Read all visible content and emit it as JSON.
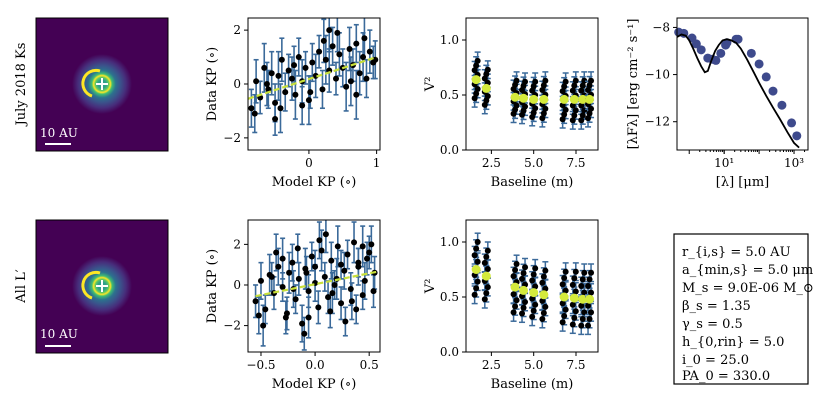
{
  "figure": {
    "rows": [
      {
        "row_label": "July 2018 Ks",
        "image_scale_label": "10 AU"
      },
      {
        "row_label": "All L′",
        "image_scale_label": "10 AU"
      }
    ],
    "parameters_box": [
      "r_{i,s} = 5.0 AU",
      "a_{min,s} = 5.0 μm",
      "M_s = 9.0E-06 M_⊙",
      "β_s = 1.35",
      "γ_s = 0.5",
      "h_{0,rin} = 5.0",
      "i_0 = 25.0",
      "PA_0 = 330.0"
    ]
  },
  "colors": {
    "image_bg": "#440154",
    "ring": "#fde725",
    "errorbar": "#3b6a9a",
    "point": "#000000",
    "fit_line": "#c8e03a",
    "v2_binned": "#d4ea3c",
    "sed_points": "#3e4a8c",
    "sed_model": "#000000"
  },
  "chart_data": [
    {
      "panel": "kp-row1",
      "type": "scatter",
      "xlabel": "Model KP (∘)",
      "ylabel": "Data KP (∘)",
      "xlim": [
        -0.9,
        1.05
      ],
      "ylim": [
        -2.45,
        2.45
      ],
      "xticks": [
        0,
        1
      ],
      "xtick_labels": [
        "0",
        "1"
      ],
      "yticks": [
        -2,
        0,
        2
      ],
      "ytick_labels": [
        "−2",
        "0",
        "2"
      ],
      "fit_line": {
        "x": [
          -0.9,
          1.0
        ],
        "y": [
          -0.55,
          1.0
        ]
      },
      "series": [
        {
          "name": "data",
          "x": [
            -0.85,
            -0.78,
            -0.72,
            -0.66,
            -0.6,
            -0.55,
            -0.5,
            -0.45,
            -0.4,
            -0.35,
            -0.3,
            -0.25,
            -0.2,
            -0.15,
            -0.1,
            -0.05,
            0.0,
            0.05,
            0.1,
            0.15,
            0.2,
            0.25,
            0.3,
            0.35,
            0.4,
            0.45,
            0.5,
            0.55,
            0.6,
            0.65,
            0.7,
            0.75,
            0.8,
            0.85,
            0.9,
            0.95,
            -0.8,
            -0.62,
            -0.42,
            -0.22,
            0.02,
            0.22,
            0.42,
            0.62,
            0.82,
            -0.5,
            -0.1,
            0.3,
            0.7,
            0.98
          ],
          "y": [
            -0.9,
            0.1,
            -0.5,
            0.6,
            -0.2,
            0.4,
            -0.7,
            0.3,
            0.9,
            -0.3,
            0.5,
            0.2,
            -0.4,
            1.0,
            0.1,
            0.6,
            -0.6,
            0.8,
            0.3,
            1.2,
            -0.2,
            0.9,
            0.5,
            1.4,
            0.2,
            1.1,
            0.6,
            -0.1,
            1.3,
            0.7,
            1.5,
            0.4,
            1.0,
            0.2,
            1.2,
            0.8,
            -1.1,
            0.0,
            -0.9,
            0.7,
            -0.3,
            1.6,
            1.9,
            0.1,
            1.7,
            -1.3,
            -0.8,
            2.0,
            -0.4,
            0.9
          ],
          "yerr": [
            0.7,
            0.8,
            0.6,
            0.9,
            0.7,
            0.8,
            0.7,
            0.9,
            0.8,
            0.7,
            0.6,
            0.8,
            0.9,
            0.7,
            0.8,
            0.6,
            0.9,
            0.7,
            0.8,
            0.6,
            0.7,
            0.9,
            0.8,
            0.7,
            0.6,
            0.8,
            0.7,
            0.9,
            0.8,
            0.6,
            0.7,
            0.8,
            0.9,
            0.7,
            0.8,
            0.6,
            0.7,
            0.8,
            0.9,
            0.7,
            0.6,
            0.8,
            0.7,
            0.9,
            0.8,
            0.6,
            0.7,
            0.8,
            0.9,
            0.7
          ]
        }
      ]
    },
    {
      "panel": "v2-row1",
      "type": "scatter",
      "xlabel": "Baseline (m)",
      "ylabel": "V²",
      "xlim": [
        1.0,
        8.8
      ],
      "ylim": [
        0.0,
        1.2
      ],
      "xticks": [
        2.5,
        5.0,
        7.5
      ],
      "xtick_labels": [
        "2.5",
        "5.0",
        "7.5"
      ],
      "yticks": [
        0.0,
        0.5,
        1.0
      ],
      "ytick_labels": [
        "0.0",
        "0.5",
        "1.0"
      ],
      "groups": [
        {
          "baseline": 1.6,
          "center": 0.64,
          "spread": 0.17,
          "binned": 0.64
        },
        {
          "baseline": 2.2,
          "center": 0.57,
          "spread": 0.16,
          "binned": 0.56
        },
        {
          "baseline": 3.9,
          "center": 0.48,
          "spread": 0.15,
          "binned": 0.48
        },
        {
          "baseline": 4.4,
          "center": 0.47,
          "spread": 0.15,
          "binned": 0.47
        },
        {
          "baseline": 5.0,
          "center": 0.46,
          "spread": 0.16,
          "binned": 0.46
        },
        {
          "baseline": 5.6,
          "center": 0.46,
          "spread": 0.17,
          "binned": 0.46
        },
        {
          "baseline": 6.8,
          "center": 0.45,
          "spread": 0.17,
          "binned": 0.46
        },
        {
          "baseline": 7.4,
          "center": 0.45,
          "spread": 0.18,
          "binned": 0.46
        },
        {
          "baseline": 7.9,
          "center": 0.45,
          "spread": 0.18,
          "binned": 0.46
        },
        {
          "baseline": 8.3,
          "center": 0.46,
          "spread": 0.17,
          "binned": 0.46
        }
      ]
    },
    {
      "panel": "sed",
      "type": "line",
      "xlabel": "[λ] [μm]",
      "ylabel": "[λFλ] [erg cm⁻² s⁻¹]",
      "xscale": "log",
      "xlim_log10": [
        -0.35,
        3.4
      ],
      "ylim": [
        -13.2,
        -7.6
      ],
      "xticks_log10": [
        1,
        3
      ],
      "xtick_labels": [
        "10¹",
        "10³"
      ],
      "yticks": [
        -8,
        -10,
        -12
      ],
      "ytick_labels": [
        "−8",
        "−10",
        "−12"
      ],
      "series": [
        {
          "name": "observed",
          "x": [
            0.5,
            0.7,
            1.2,
            1.6,
            2.2,
            3.4,
            4.6,
            5.8,
            8.0,
            11.0,
            12.0,
            22.0,
            25.0,
            60.0,
            100.0,
            160.0,
            250.0,
            450.0,
            850.0,
            1200.0
          ],
          "y": [
            -8.2,
            -8.25,
            -8.45,
            -8.7,
            -8.95,
            -9.3,
            -9.35,
            -9.4,
            -9.1,
            -8.75,
            -8.65,
            -8.5,
            -8.5,
            -9.1,
            -9.55,
            -10.1,
            -10.7,
            -11.3,
            -12.05,
            -12.6
          ]
        },
        {
          "name": "model",
          "x": [
            0.45,
            0.6,
            0.8,
            1.0,
            1.3,
            1.7,
            2.2,
            2.8,
            3.4,
            4.2,
            5.5,
            7.0,
            9.0,
            12.0,
            16.0,
            22.0,
            30.0,
            45.0,
            70.0,
            100.0,
            160.0,
            250.0,
            400.0,
            650.0,
            1000.0,
            1400.0
          ],
          "y": [
            -8.4,
            -8.3,
            -8.35,
            -8.55,
            -8.9,
            -9.3,
            -9.65,
            -9.9,
            -9.85,
            -9.45,
            -9.0,
            -8.75,
            -8.55,
            -8.5,
            -8.55,
            -8.65,
            -8.9,
            -9.35,
            -9.9,
            -10.35,
            -10.9,
            -11.4,
            -11.9,
            -12.45,
            -12.9,
            -13.1
          ]
        }
      ]
    },
    {
      "panel": "kp-row2",
      "type": "scatter",
      "xlabel": "Model KP (∘)",
      "ylabel": "Data KP (∘)",
      "xlim": [
        -0.62,
        0.6
      ],
      "ylim": [
        -3.3,
        3.2
      ],
      "xticks": [
        -0.5,
        0.0,
        0.5
      ],
      "xtick_labels": [
        "−0.5",
        "0.0",
        "0.5"
      ],
      "yticks": [
        -2,
        0,
        2
      ],
      "ytick_labels": [
        "−2",
        "0",
        "2"
      ],
      "fit_line": {
        "x": [
          -0.55,
          0.57
        ],
        "y": [
          -0.55,
          0.65
        ]
      },
      "series": [
        {
          "name": "data",
          "x": [
            -0.55,
            -0.5,
            -0.46,
            -0.42,
            -0.38,
            -0.34,
            -0.3,
            -0.27,
            -0.24,
            -0.21,
            -0.18,
            -0.15,
            -0.12,
            -0.09,
            -0.06,
            -0.03,
            0.0,
            0.03,
            0.06,
            0.09,
            0.12,
            0.15,
            0.18,
            0.21,
            0.24,
            0.27,
            0.3,
            0.33,
            0.36,
            0.4,
            0.44,
            0.48,
            0.52,
            0.55,
            -0.48,
            -0.36,
            -0.26,
            -0.16,
            -0.06,
            0.04,
            0.14,
            0.24,
            0.34,
            0.44,
            0.54,
            -0.4,
            -0.2,
            0.0,
            0.2,
            0.4,
            -0.1,
            0.1,
            0.28,
            -0.3,
            0.5,
            -0.52,
            0.38,
            -0.08,
            0.16,
            0.46
          ],
          "y": [
            -0.8,
            0.2,
            -1.2,
            0.5,
            -0.4,
            0.9,
            -0.1,
            -1.6,
            0.6,
            1.1,
            -0.7,
            0.3,
            -1.9,
            0.8,
            -0.3,
            1.4,
            0.1,
            -1.1,
            1.7,
            0.4,
            -0.6,
            1.2,
            0.0,
            1.9,
            -0.9,
            0.7,
            1.5,
            -0.2,
            2.1,
            0.9,
            -0.5,
            1.3,
            2.0,
            0.6,
            -2.0,
            1.6,
            -1.4,
            1.8,
            -1.6,
            2.2,
            -1.3,
            1.0,
            -0.8,
            1.9,
            -0.3,
            0.4,
            -0.2,
            0.9,
            0.3,
            1.1,
            -2.4,
            2.5,
            -1.8,
            1.3,
            1.6,
            -1.5,
            -1.2,
            0.6,
            -0.4,
            0.2
          ],
          "yerr": [
            0.8,
            0.9,
            0.7,
            1.0,
            0.8,
            0.9,
            0.7,
            0.8,
            1.0,
            0.9,
            0.7,
            0.8,
            0.9,
            1.0,
            0.8,
            0.7,
            0.9,
            0.8,
            1.0,
            0.7,
            0.8,
            0.9,
            0.7,
            1.0,
            0.8,
            0.9,
            0.7,
            0.8,
            1.0,
            0.9,
            0.7,
            0.8,
            0.9,
            0.8,
            1.0,
            0.9,
            0.8,
            0.7,
            1.0,
            0.9,
            0.8,
            0.7,
            0.9,
            1.0,
            0.8,
            0.7,
            0.9,
            0.8,
            1.0,
            0.7,
            0.8,
            0.9,
            0.7,
            1.0,
            0.8,
            0.9,
            0.7,
            0.8,
            1.0,
            0.9
          ]
        }
      ]
    },
    {
      "panel": "v2-row2",
      "type": "scatter",
      "xlabel": "Baseline (m)",
      "ylabel": "V²",
      "xlim": [
        1.0,
        8.8
      ],
      "ylim": [
        0.0,
        1.2
      ],
      "xticks": [
        2.5,
        5.0,
        7.5
      ],
      "xtick_labels": [
        "2.5",
        "5.0",
        "7.5"
      ],
      "yticks": [
        0.0,
        0.5,
        1.0
      ],
      "ytick_labels": [
        "0.0",
        "0.5",
        "1.0"
      ],
      "groups": [
        {
          "baseline": 1.6,
          "center": 0.76,
          "spread": 0.24,
          "binned": 0.75
        },
        {
          "baseline": 2.2,
          "center": 0.7,
          "spread": 0.22,
          "binned": 0.69
        },
        {
          "baseline": 3.9,
          "center": 0.58,
          "spread": 0.22,
          "binned": 0.59
        },
        {
          "baseline": 4.4,
          "center": 0.56,
          "spread": 0.21,
          "binned": 0.56
        },
        {
          "baseline": 5.0,
          "center": 0.54,
          "spread": 0.22,
          "binned": 0.54
        },
        {
          "baseline": 5.6,
          "center": 0.52,
          "spread": 0.22,
          "binned": 0.52
        },
        {
          "baseline": 6.8,
          "center": 0.5,
          "spread": 0.23,
          "binned": 0.5
        },
        {
          "baseline": 7.4,
          "center": 0.49,
          "spread": 0.24,
          "binned": 0.49
        },
        {
          "baseline": 7.9,
          "center": 0.48,
          "spread": 0.24,
          "binned": 0.48
        },
        {
          "baseline": 8.3,
          "center": 0.48,
          "spread": 0.24,
          "binned": 0.48
        }
      ]
    }
  ]
}
